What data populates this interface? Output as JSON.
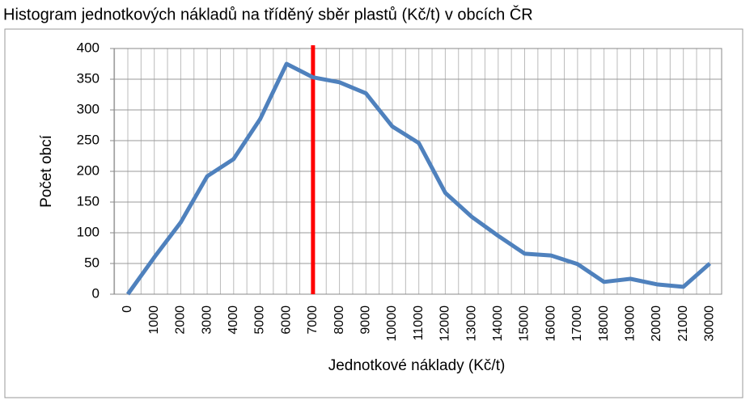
{
  "chart_data": {
    "type": "line",
    "title": "Histogram jednotkových nákladů na tříděný sběr plastů (Kč/t) v obcích ČR",
    "x_label": "Jednotkové náklady (Kč/t)",
    "y_label": "Počet obcí",
    "categories": [
      "0",
      "1000",
      "2000",
      "3000",
      "4000",
      "5000",
      "6000",
      "7000",
      "8000",
      "9000",
      "10000",
      "11000",
      "12000",
      "13000",
      "14000",
      "15000",
      "16000",
      "17000",
      "18000",
      "19000",
      "20000",
      "21000",
      "30000"
    ],
    "series": [
      {
        "color": "#4f81bd",
        "values": [
          0,
          60,
          117,
          192,
          220,
          285,
          375,
          353,
          345,
          327,
          273,
          246,
          165,
          126,
          95,
          66,
          63,
          49,
          20,
          25,
          16,
          12,
          50
        ]
      }
    ],
    "vline": {
      "category": "7000",
      "color": "#ff0000"
    },
    "ylim": [
      0,
      400
    ],
    "yticks": [
      0,
      50,
      100,
      150,
      200,
      250,
      300,
      350,
      400
    ],
    "grid": true
  }
}
